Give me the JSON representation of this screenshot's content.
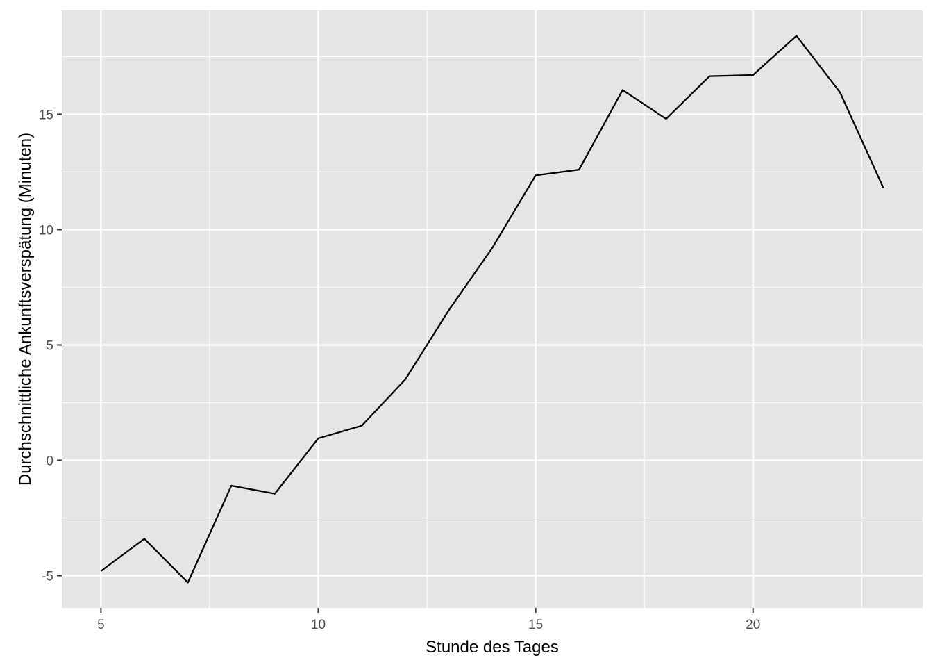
{
  "chart_data": {
    "type": "line",
    "title": "",
    "xlabel": "Stunde des Tages",
    "ylabel": "Durchschnittliche Ankunftsverspätung (Minuten)",
    "xlim": [
      4.1,
      23.9
    ],
    "ylim": [
      -6.4,
      19.5
    ],
    "x_ticks": [
      5,
      10,
      15,
      20
    ],
    "x_tick_labels": [
      "5",
      "10",
      "15",
      "20"
    ],
    "y_ticks": [
      -5,
      0,
      5,
      10,
      15
    ],
    "y_tick_labels": [
      "-5",
      "0",
      "5",
      "10",
      "15"
    ],
    "grid": true,
    "legend": "none",
    "colors": {
      "panel": "#e5e5e5",
      "grid": "#ffffff",
      "line": "#000000",
      "tick_text": "#4d4d4d"
    },
    "series": [
      {
        "x": [
          5,
          6,
          7,
          8,
          9,
          10,
          11,
          12,
          13,
          14,
          15,
          16,
          17,
          18,
          19,
          20,
          21,
          22,
          23
        ],
        "y": [
          -4.8,
          -3.4,
          -5.3,
          -1.1,
          -1.45,
          0.95,
          1.5,
          3.5,
          6.5,
          9.2,
          12.35,
          12.6,
          16.05,
          14.8,
          16.65,
          16.7,
          18.4,
          15.95,
          11.8
        ]
      }
    ]
  }
}
